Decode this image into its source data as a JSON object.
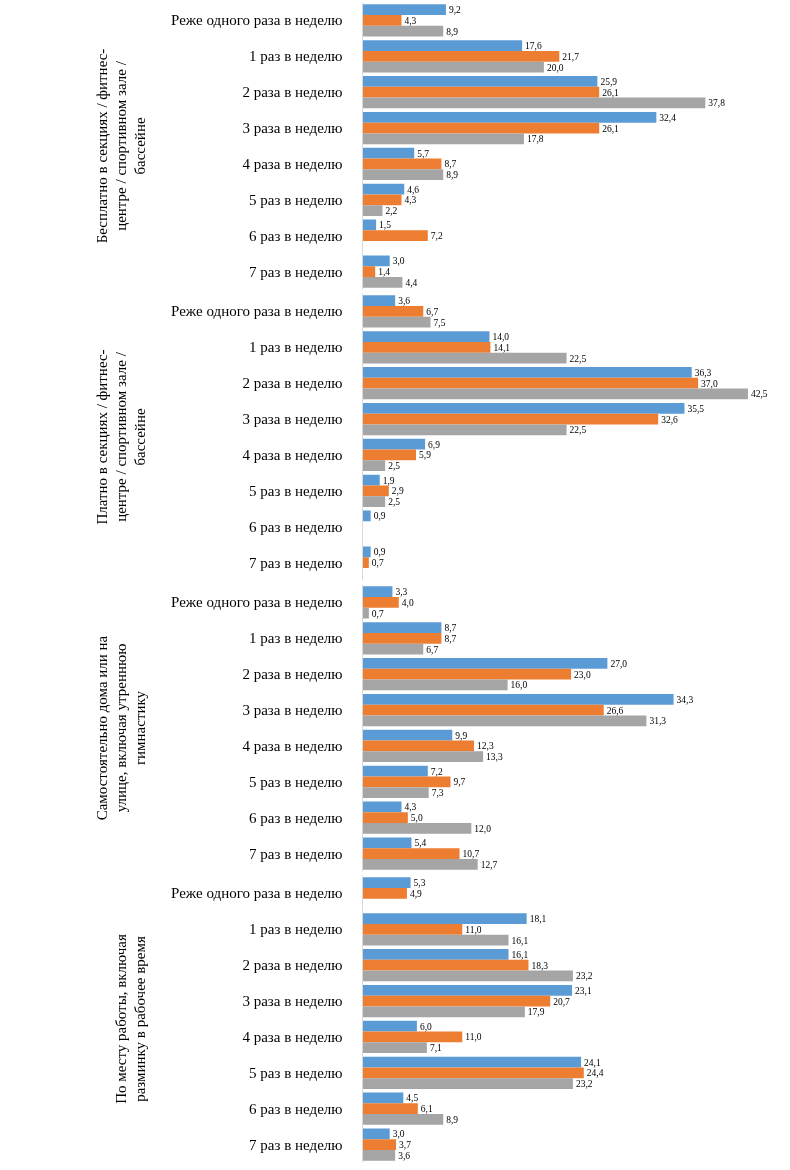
{
  "chart_data": [
    {
      "type": "bar",
      "orientation": "horizontal",
      "tick_labels": "y",
      "ylabel": "Бесплатно в секциях / фитнес-центре / спортивном зале / бассейне",
      "categories": [
        "Реже одного раза в неделю",
        "1 раз в неделю",
        "2 раза в неделю",
        "3 раза в неделю",
        "4 раза в неделю",
        "5 раз в неделю",
        "6 раз в неделю",
        "7 раз в неделю"
      ],
      "series": [
        {
          "color": "#5b9bd5",
          "values": [
            9.2,
            17.6,
            25.9,
            32.4,
            5.7,
            4.6,
            1.5,
            3.0
          ],
          "value_labels": [
            "9,2",
            "17,6",
            "25,9",
            "32,4",
            "5,7",
            "4,6",
            "1,5",
            "3,0"
          ]
        },
        {
          "color": "#ed7d31",
          "values": [
            4.3,
            21.7,
            26.1,
            26.1,
            8.7,
            4.3,
            7.2,
            1.4
          ],
          "value_labels": [
            "4,3",
            "21,7",
            "26,1",
            "26,1",
            "8,7",
            "4,3",
            "7,2",
            "1,4"
          ]
        },
        {
          "color": "#a5a5a5",
          "values": [
            8.9,
            20.0,
            37.8,
            17.8,
            8.9,
            2.2,
            null,
            4.4
          ],
          "value_labels": [
            "8,9",
            "20,0",
            "37,8",
            "17,8",
            "8,9",
            "2,2",
            null,
            "4,4"
          ]
        }
      ]
    },
    {
      "type": "bar",
      "orientation": "horizontal",
      "tick_labels": "y",
      "ylabel": "Платно в секциях / фитнес-центре / спортивном зале / бассейне",
      "categories": [
        "Реже одного раза в неделю",
        "1 раз в неделю",
        "2 раза в неделю",
        "3 раза в неделю",
        "4 раза в неделю",
        "5 раз в неделю",
        "6 раз в неделю",
        "7 раз в неделю"
      ],
      "series": [
        {
          "color": "#5b9bd5",
          "values": [
            3.6,
            14.0,
            36.3,
            35.5,
            6.9,
            1.9,
            0.9,
            0.9
          ],
          "value_labels": [
            "3,6",
            "14,0",
            "36,3",
            "35,5",
            "6,9",
            "1,9",
            "0,9",
            "0,9"
          ]
        },
        {
          "color": "#ed7d31",
          "values": [
            6.7,
            14.1,
            37.0,
            32.6,
            5.9,
            2.9,
            null,
            0.7
          ],
          "value_labels": [
            "6,7",
            "14,1",
            "37,0",
            "32,6",
            "5,9",
            "2,9",
            null,
            "0,7"
          ]
        },
        {
          "color": "#a5a5a5",
          "values": [
            7.5,
            22.5,
            42.5,
            22.5,
            2.5,
            2.5,
            null,
            null
          ],
          "value_labels": [
            "7,5",
            "22,5",
            "42,5",
            "22,5",
            "2,5",
            "2,5",
            null,
            null
          ]
        }
      ]
    },
    {
      "type": "bar",
      "orientation": "horizontal",
      "tick_labels": "y",
      "ylabel": "Самостоятельно дома или на улице, включая утреннюю гимнастику",
      "categories": [
        "Реже одного раза в неделю",
        "1 раз в неделю",
        "2 раза в неделю",
        "3 раза в неделю",
        "4 раза в неделю",
        "5 раз в неделю",
        "6 раз в неделю",
        "7 раз в неделю"
      ],
      "series": [
        {
          "color": "#5b9bd5",
          "values": [
            3.3,
            8.7,
            27.0,
            34.3,
            9.9,
            7.2,
            4.3,
            5.4
          ],
          "value_labels": [
            "3,3",
            "8,7",
            "27,0",
            "34,3",
            "9,9",
            "7,2",
            "4,3",
            "5,4"
          ]
        },
        {
          "color": "#ed7d31",
          "values": [
            4.0,
            8.7,
            23.0,
            26.6,
            12.3,
            9.7,
            5.0,
            10.7
          ],
          "value_labels": [
            "4,0",
            "8,7",
            "23,0",
            "26,6",
            "12,3",
            "9,7",
            "5,0",
            "10,7"
          ]
        },
        {
          "color": "#a5a5a5",
          "values": [
            0.7,
            6.7,
            16.0,
            31.3,
            13.3,
            7.3,
            12.0,
            12.7
          ],
          "value_labels": [
            "0,7",
            "6,7",
            "16,0",
            "31,3",
            "13,3",
            "7,3",
            "12,0",
            "12,7"
          ]
        }
      ]
    },
    {
      "type": "bar",
      "orientation": "horizontal",
      "tick_labels": "y",
      "ylabel": "По месту работы, включая разминку в рабочее время",
      "categories": [
        "Реже одного раза в неделю",
        "1 раз в неделю",
        "2 раза в неделю",
        "3 раза в неделю",
        "4 раза в неделю",
        "5 раз в неделю",
        "6 раз в неделю",
        "7 раз в неделю"
      ],
      "series": [
        {
          "color": "#5b9bd5",
          "values": [
            5.3,
            18.1,
            16.1,
            23.1,
            6.0,
            24.1,
            4.5,
            3.0
          ],
          "value_labels": [
            "5,3",
            "18,1",
            "16,1",
            "23,1",
            "6,0",
            "24,1",
            "4,5",
            "3,0"
          ]
        },
        {
          "color": "#ed7d31",
          "values": [
            4.9,
            11.0,
            18.3,
            20.7,
            11.0,
            24.4,
            6.1,
            3.7
          ],
          "value_labels": [
            "4,9",
            "11,0",
            "18,3",
            "20,7",
            "11,0",
            "24,4",
            "6,1",
            "3,7"
          ]
        },
        {
          "color": "#a5a5a5",
          "values": [
            null,
            16.1,
            23.2,
            17.9,
            7.1,
            23.2,
            8.9,
            3.6
          ],
          "value_labels": [
            null,
            "16,1",
            "23,2",
            "17,9",
            "7,1",
            "23,2",
            "8,9",
            "3,6"
          ]
        }
      ]
    }
  ]
}
